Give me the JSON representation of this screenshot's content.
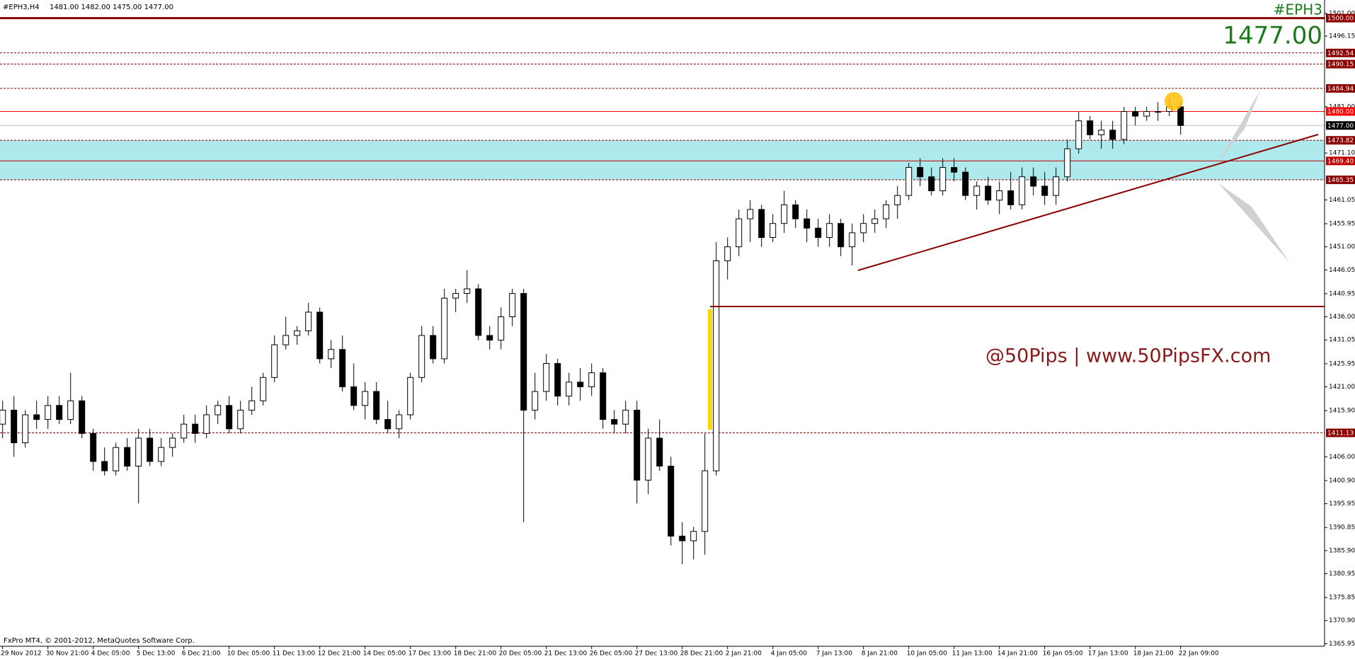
{
  "chart_data": {
    "type": "candlestick",
    "title": "#EPH3,H4",
    "ohlc_text": "1481.00 1482.00 1475.00 1477.00",
    "symbol": "#EPH3",
    "price_label": "1477.00",
    "watermark": "@50Pips | www.50PipsFX.com",
    "footer": "FxPro MT4, © 2001-2012, MetaQuotes Software Corp.",
    "categories": [
      "29 Nov 2012",
      null,
      null,
      null,
      "30 Nov 21:00",
      null,
      null,
      null,
      "4 Dec 05:00",
      null,
      null,
      null,
      "5 Dec 13:00",
      null,
      null,
      null,
      "6 Dec 21:00",
      null,
      null,
      null,
      "10 Dec 05:00",
      null,
      null,
      null,
      "11 Dec 13:00",
      null,
      null,
      null,
      "12 Dec 21:00",
      null,
      null,
      null,
      "14 Dec 05:00",
      null,
      null,
      null,
      "17 Dec 13:00",
      null,
      null,
      null,
      "18 Dec 21:00",
      null,
      null,
      null,
      "20 Dec 05:00",
      null,
      null,
      null,
      "21 Dec 13:00",
      null,
      null,
      null,
      "26 Dec 05:00",
      null,
      null,
      null,
      "27 Dec 13:00",
      null,
      null,
      null,
      "28 Dec 21:00",
      null,
      null,
      null,
      "2 Jan 21:00",
      null,
      null,
      null,
      "4 Jan 05:00",
      null,
      null,
      null,
      "7 Jan 13:00",
      null,
      null,
      null,
      "8 Jan 21:00",
      null,
      null,
      null,
      "10 Jan 05:00",
      null,
      null,
      null,
      "11 Jan 13:00",
      null,
      null,
      null,
      "14 Jan 21:00",
      null,
      null,
      null,
      "16 Jan 05:00",
      null,
      null,
      null,
      "17 Jan 13:00",
      null,
      null,
      null,
      "18 Jan 21:00",
      null,
      null,
      null,
      "22 Jan 09:00"
    ],
    "open": [
      1413,
      1416,
      1409,
      1415,
      1414,
      1417,
      1414,
      1418,
      1411,
      1405,
      1403,
      1408,
      1404,
      1410,
      1405,
      1408,
      1410,
      1413,
      1411,
      1415,
      1417,
      1412,
      1416,
      1418,
      1423,
      1430,
      1432,
      1433,
      1437,
      1427,
      1429,
      1421,
      1417,
      1420,
      1414,
      1412,
      1415,
      1423,
      1432,
      1427,
      1440,
      1441,
      1442,
      1432,
      1431,
      1436,
      1441,
      1416,
      1420,
      1426,
      1419,
      1422,
      1421,
      1424,
      1414,
      1413,
      1416,
      1401,
      1410,
      1404,
      1389,
      1388,
      1390,
      1403,
      1448,
      1451,
      1457,
      1459,
      1453,
      1456,
      1460,
      1457,
      1455,
      1453,
      1456,
      1451,
      1454,
      1456,
      1457,
      1460,
      1462,
      1468,
      1466,
      1463,
      1468,
      1467,
      1462,
      1464,
      1461,
      1463,
      1460,
      1466,
      1464,
      1462,
      1466,
      1472,
      1478,
      1475,
      1476,
      1474,
      1480,
      1479,
      1480,
      1480,
      1481
    ],
    "high": [
      1418,
      1419,
      1416,
      1418,
      1419,
      1419,
      1424,
      1419,
      1412,
      1408,
      1409,
      1410,
      1412,
      1412,
      1410,
      1411,
      1415,
      1415,
      1417,
      1418,
      1419,
      1418,
      1421,
      1424,
      1432,
      1436,
      1434,
      1439,
      1438,
      1431,
      1432,
      1426,
      1422,
      1422,
      1418,
      1416,
      1424,
      1434,
      1434,
      1442,
      1442,
      1446,
      1443,
      1434,
      1438,
      1442,
      1442,
      1424,
      1428,
      1427,
      1424,
      1425,
      1426,
      1425,
      1416,
      1418,
      1418,
      1412,
      1414,
      1406,
      1392,
      1391,
      1411,
      1452,
      1453,
      1459,
      1461,
      1460,
      1458,
      1463,
      1461,
      1459,
      1457,
      1458,
      1457,
      1456,
      1458,
      1459,
      1461,
      1464,
      1469,
      1470,
      1468,
      1470,
      1470,
      1468,
      1465,
      1466,
      1465,
      1467,
      1468,
      1468,
      1467,
      1468,
      1474,
      1480,
      1479,
      1478,
      1478,
      1481,
      1481,
      1481,
      1482,
      1483,
      1482
    ],
    "low": [
      1410,
      1406,
      1408,
      1412,
      1412,
      1413,
      1413,
      1410,
      1403,
      1402,
      1402,
      1403,
      1396,
      1404,
      1404,
      1406,
      1409,
      1409,
      1410,
      1413,
      1411,
      1411,
      1415,
      1417,
      1422,
      1429,
      1430,
      1432,
      1426,
      1425,
      1420,
      1416,
      1414,
      1413,
      1411,
      1410,
      1414,
      1422,
      1426,
      1426,
      1437,
      1439,
      1431,
      1429,
      1429,
      1434,
      1392,
      1414,
      1418,
      1417,
      1417,
      1418,
      1419,
      1412,
      1411,
      1411,
      1396,
      1398,
      1403,
      1387,
      1383,
      1384,
      1385,
      1402,
      1444,
      1449,
      1452,
      1451,
      1452,
      1454,
      1455,
      1452,
      1451,
      1451,
      1449,
      1447,
      1452,
      1454,
      1455,
      1457,
      1461,
      1464,
      1462,
      1462,
      1465,
      1461,
      1459,
      1460,
      1458,
      1459,
      1459,
      1462,
      1460,
      1460,
      1465,
      1471,
      1474,
      1472,
      1472,
      1473,
      1477,
      1478,
      1478,
      1479,
      1475
    ],
    "close": [
      1416,
      1409,
      1415,
      1414,
      1417,
      1414,
      1418,
      1411,
      1405,
      1403,
      1408,
      1404,
      1410,
      1405,
      1408,
      1410,
      1413,
      1411,
      1415,
      1417,
      1412,
      1416,
      1418,
      1423,
      1430,
      1432,
      1433,
      1437,
      1427,
      1429,
      1421,
      1417,
      1420,
      1414,
      1412,
      1415,
      1423,
      1432,
      1427,
      1440,
      1441,
      1442,
      1432,
      1431,
      1436,
      1441,
      1416,
      1420,
      1426,
      1419,
      1422,
      1421,
      1424,
      1414,
      1413,
      1416,
      1401,
      1410,
      1404,
      1389,
      1388,
      1390,
      1403,
      1448,
      1451,
      1457,
      1459,
      1453,
      1456,
      1460,
      1457,
      1455,
      1453,
      1456,
      1451,
      1454,
      1456,
      1457,
      1460,
      1462,
      1468,
      1466,
      1463,
      1468,
      1467,
      1462,
      1464,
      1461,
      1463,
      1460,
      1466,
      1464,
      1462,
      1466,
      1472,
      1478,
      1475,
      1476,
      1474,
      1480,
      1479,
      1480,
      1480,
      1481,
      1477
    ],
    "bull_color": "#ffffff",
    "bear_color": "#000000",
    "ylim": [
      1365.4,
      1503.28
    ],
    "yticks": [
      {
        "value": 1501,
        "label": "1501.00"
      },
      {
        "value": 1496.15,
        "label": "1496.15"
      },
      {
        "value": 1481,
        "label": "1481.00"
      },
      {
        "value": 1471.1,
        "label": "1471.10"
      },
      {
        "value": 1461.05,
        "label": "1461.05"
      },
      {
        "value": 1455.95,
        "label": "1455.95"
      },
      {
        "value": 1451,
        "label": "1451.00"
      },
      {
        "value": 1446.05,
        "label": "1446.05"
      },
      {
        "value": 1440.95,
        "label": "1440.95"
      },
      {
        "value": 1436,
        "label": "1436.00"
      },
      {
        "value": 1431.05,
        "label": "1431.05"
      },
      {
        "value": 1425.95,
        "label": "1425.95"
      },
      {
        "value": 1421,
        "label": "1421.00"
      },
      {
        "value": 1415.9,
        "label": "1415.90"
      },
      {
        "value": 1406,
        "label": "1406.00"
      },
      {
        "value": 1400.9,
        "label": "1400.90"
      },
      {
        "value": 1395.95,
        "label": "1395.95"
      },
      {
        "value": 1390.85,
        "label": "1390.85"
      },
      {
        "value": 1385.9,
        "label": "1385.90"
      },
      {
        "value": 1380.95,
        "label": "1380.95"
      },
      {
        "value": 1375.85,
        "label": "1375.85"
      },
      {
        "value": 1370.9,
        "label": "1370.90"
      },
      {
        "value": 1365.95,
        "label": "1365.95"
      }
    ],
    "zone": {
      "from": 1465.35,
      "to": 1473.82,
      "color": "#aeeaed"
    },
    "levels": [
      {
        "value": 1500,
        "label": "1500.00",
        "color": "#8b0000",
        "style": "thick"
      },
      {
        "value": 1492.54,
        "label": "1492.54",
        "color": "#8b0000",
        "style": "dashed"
      },
      {
        "value": 1490.15,
        "label": "1490.15",
        "color": "#8b0000",
        "style": "dashed"
      },
      {
        "value": 1484.94,
        "label": "1484.94",
        "color": "#8b0000",
        "style": "dashed"
      },
      {
        "value": 1480,
        "label": "1480.00",
        "color": "#ff0000",
        "style": "solid"
      },
      {
        "value": 1477,
        "label": "1477.00",
        "color": "#000000",
        "style": "current"
      },
      {
        "value": 1473.82,
        "label": "1473.82",
        "color": "#8b0000",
        "style": "dashed"
      },
      {
        "value": 1469.4,
        "label": "1469.40",
        "color": "#c00000",
        "style": "solid"
      },
      {
        "value": 1465.35,
        "label": "1465.35",
        "color": "#8b0000",
        "style": "dashed"
      },
      {
        "value": 1411.13,
        "label": "1411.13",
        "color": "#8b0000",
        "style": "dashed"
      }
    ]
  }
}
